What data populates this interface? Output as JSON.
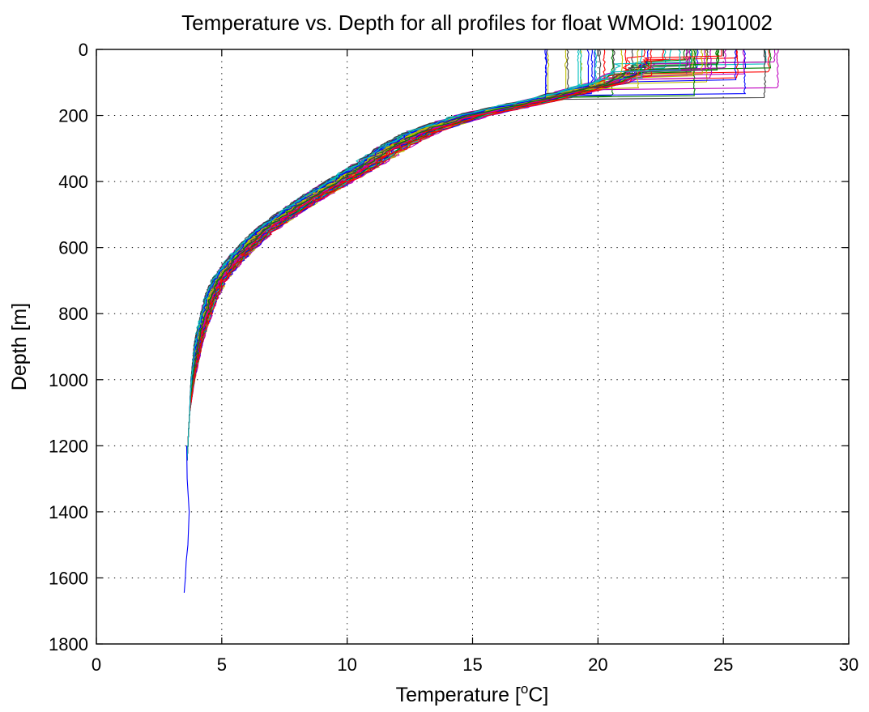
{
  "chart_data": {
    "type": "line",
    "title": "Temperature vs. Depth for all profiles for float WMOId: 1901002",
    "xlabel": {
      "prefix": "Temperature [",
      "sup": "o",
      "suffix": "C]"
    },
    "ylabel": "Depth [m]",
    "xlim": [
      0,
      30
    ],
    "ylim": [
      0,
      1800
    ],
    "y_reversed": true,
    "x_ticks": [
      0,
      5,
      10,
      15,
      20,
      25,
      30
    ],
    "y_ticks": [
      0,
      200,
      400,
      600,
      800,
      1000,
      1200,
      1400,
      1600,
      1800
    ],
    "grid": true,
    "legend": "none",
    "series_count_approx": 60,
    "series_colors": [
      "#0000ff",
      "#008000",
      "#ff0000",
      "#00bfbf",
      "#bf00bf",
      "#bfbf00",
      "#404040"
    ],
    "envelope": {
      "description_values": "median profile (depth m, temperature C) with surface temperatures ranging 18–27",
      "median_profile": [
        [
          60,
          21.5
        ],
        [
          100,
          20.5
        ],
        [
          150,
          18.0
        ],
        [
          200,
          15.0
        ],
        [
          250,
          13.0
        ],
        [
          300,
          11.8
        ],
        [
          350,
          10.8
        ],
        [
          400,
          9.7
        ],
        [
          450,
          8.6
        ],
        [
          500,
          7.6
        ],
        [
          550,
          6.7
        ],
        [
          600,
          6.0
        ],
        [
          650,
          5.4
        ],
        [
          700,
          4.9
        ],
        [
          750,
          4.6
        ],
        [
          800,
          4.4
        ],
        [
          850,
          4.2
        ],
        [
          900,
          4.05
        ],
        [
          950,
          3.95
        ],
        [
          1000,
          3.85
        ],
        [
          1050,
          3.78
        ],
        [
          1100,
          3.72
        ],
        [
          1150,
          3.68
        ],
        [
          1200,
          3.65
        ],
        [
          1240,
          3.62
        ]
      ],
      "surface_temperature_range": [
        17.8,
        27.2
      ],
      "profile_depth_range": [
        1220,
        1250
      ]
    },
    "deep_profile": {
      "color": "#0000ff",
      "points": [
        [
          1200,
          3.6
        ],
        [
          1300,
          3.62
        ],
        [
          1400,
          3.7
        ],
        [
          1500,
          3.65
        ],
        [
          1550,
          3.58
        ],
        [
          1600,
          3.55
        ],
        [
          1645,
          3.5
        ]
      ]
    }
  }
}
